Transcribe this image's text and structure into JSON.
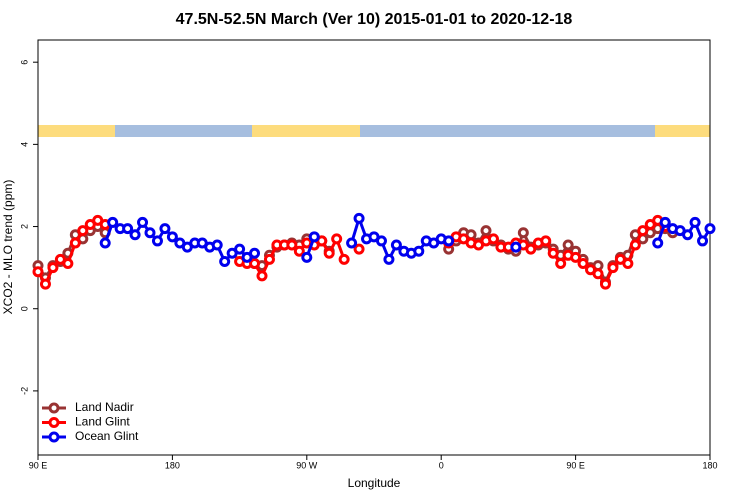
{
  "chart_data": {
    "type": "line",
    "title": "47.5N-52.5N March (Ver 10)   2015-01-01 to 2020-12-18",
    "x_label": "Longitude",
    "y_label": "XCO2 - MLO trend (ppm)",
    "xlim": [
      90,
      540
    ],
    "ylim": [
      -3.56,
      6.54
    ],
    "xticks": [
      {
        "value": 90,
        "label": "90 E"
      },
      180,
      {
        "value": 270,
        "label": "90 W"
      },
      {
        "value": 360,
        "label": "0"
      },
      {
        "value": 450,
        "label": "90 E"
      },
      {
        "value": 540,
        "label": "180"
      }
    ],
    "yticks": [
      -2,
      0,
      2,
      4,
      6
    ],
    "legend": "bottom-left",
    "series": [
      {
        "name": "Land Nadir",
        "color": "#993333",
        "x": [
          90,
          95,
          100,
          105,
          110,
          115,
          120,
          125,
          130,
          135,
          140,
          225,
          230,
          235,
          240,
          245,
          250,
          255,
          260,
          265,
          270,
          275,
          280,
          285,
          290,
          365,
          370,
          375,
          380,
          385,
          390,
          395,
          400,
          405,
          410,
          415,
          420,
          425,
          430,
          435,
          440,
          445,
          450,
          455,
          460,
          465,
          470,
          475,
          480,
          485,
          490,
          495,
          500,
          505,
          510,
          515
        ],
        "values": [
          1.05,
          0.75,
          1.05,
          1.15,
          1.35,
          1.8,
          1.7,
          1.9,
          2.0,
          1.85,
          null,
          1.3,
          1.15,
          1.1,
          1.05,
          1.3,
          1.5,
          1.55,
          1.6,
          1.55,
          1.7,
          1.65,
          1.65,
          1.4,
          null,
          1.45,
          1.65,
          1.85,
          1.8,
          1.6,
          1.9,
          1.65,
          1.55,
          1.45,
          1.4,
          1.85,
          1.5,
          1.55,
          1.6,
          1.45,
          1.3,
          1.55,
          1.4,
          1.2,
          1.0,
          1.05,
          0.65,
          1.05,
          1.25,
          1.3,
          1.8,
          1.7,
          1.85,
          1.95,
          1.95,
          1.85
        ]
      },
      {
        "name": "Land Glint",
        "color": "#ff0000",
        "x": [
          90,
          95,
          100,
          105,
          110,
          115,
          120,
          125,
          130,
          135,
          140,
          225,
          230,
          235,
          240,
          245,
          250,
          255,
          260,
          265,
          270,
          275,
          280,
          285,
          290,
          295,
          300,
          305,
          310,
          365,
          370,
          375,
          380,
          385,
          390,
          395,
          400,
          405,
          410,
          415,
          420,
          425,
          430,
          435,
          440,
          445,
          450,
          455,
          460,
          465,
          470,
          475,
          480,
          485,
          490,
          495,
          500,
          505,
          510
        ],
        "values": [
          0.9,
          0.6,
          1.0,
          1.2,
          1.1,
          1.6,
          1.9,
          2.05,
          2.15,
          2.05,
          null,
          1.15,
          1.1,
          1.1,
          0.8,
          1.2,
          1.55,
          1.55,
          1.55,
          1.4,
          1.6,
          1.55,
          1.65,
          1.35,
          1.7,
          1.2,
          null,
          1.45,
          null,
          1.6,
          1.75,
          1.7,
          1.6,
          1.55,
          1.65,
          1.7,
          1.5,
          1.5,
          1.6,
          1.55,
          1.45,
          1.6,
          1.65,
          1.35,
          1.1,
          1.3,
          1.25,
          1.1,
          0.95,
          0.85,
          0.6,
          1.0,
          1.2,
          1.1,
          1.55,
          1.9,
          2.05,
          2.15,
          2.0
        ]
      },
      {
        "name": "Ocean Glint",
        "color": "#0000ee",
        "x": [
          135,
          140,
          145,
          150,
          155,
          160,
          165,
          170,
          175,
          180,
          185,
          190,
          195,
          200,
          205,
          210,
          215,
          220,
          225,
          230,
          235,
          240,
          270,
          275,
          280,
          300,
          305,
          310,
          315,
          320,
          325,
          330,
          335,
          340,
          345,
          350,
          355,
          360,
          365,
          370,
          410,
          415,
          505,
          510,
          515,
          520,
          525,
          530,
          535,
          540
        ],
        "values": [
          1.6,
          2.1,
          1.95,
          1.95,
          1.8,
          2.1,
          1.85,
          1.65,
          1.95,
          1.75,
          1.6,
          1.5,
          1.6,
          1.6,
          1.5,
          1.55,
          1.15,
          1.35,
          1.45,
          1.25,
          1.35,
          null,
          1.25,
          1.75,
          null,
          1.6,
          2.2,
          1.7,
          1.75,
          1.65,
          1.2,
          1.55,
          1.4,
          1.35,
          1.4,
          1.65,
          1.6,
          1.7,
          1.65,
          null,
          1.5,
          null,
          1.6,
          2.1,
          1.95,
          1.9,
          1.8,
          2.1,
          1.65,
          1.95
        ]
      }
    ]
  }
}
